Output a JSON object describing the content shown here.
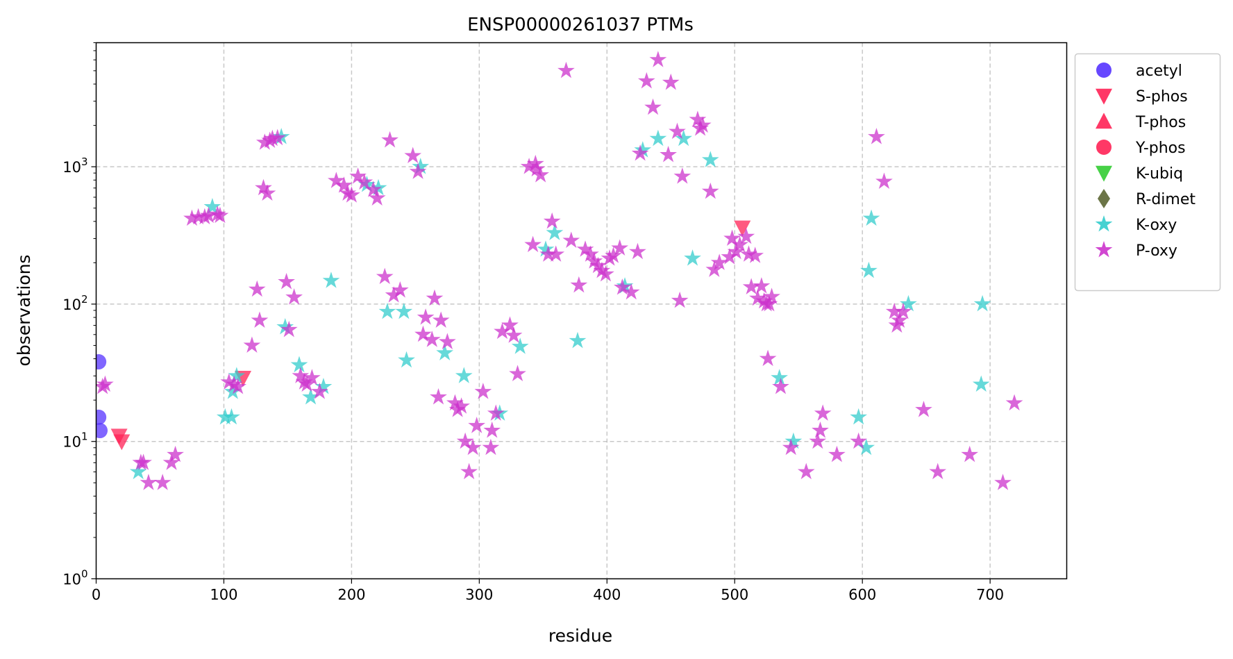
{
  "chart_data": {
    "type": "scatter",
    "title": "ENSP00000261037 PTMs",
    "xlabel": "residue",
    "ylabel": "observations",
    "xlim": [
      0,
      760
    ],
    "ylim": [
      1,
      8000
    ],
    "yscale": "log",
    "grid": true,
    "legend_position": "outside-right",
    "x_ticks": [
      "0",
      "100",
      "200",
      "300",
      "400",
      "500",
      "600",
      "700"
    ],
    "y_ticks": [
      {
        "base": "10",
        "exp": "0"
      },
      {
        "base": "10",
        "exp": "1"
      },
      {
        "base": "10",
        "exp": "2"
      },
      {
        "base": "10",
        "exp": "3"
      }
    ],
    "series": [
      {
        "name": "acetyl",
        "marker": "circle",
        "color": "#5533ff",
        "points": [
          [
            2,
            38
          ],
          [
            2,
            15
          ],
          [
            3,
            12
          ]
        ]
      },
      {
        "name": "S-phos",
        "marker": "triangle-down",
        "color": "#ff2255",
        "points": [
          [
            18,
            11
          ],
          [
            20,
            10
          ],
          [
            115,
            29
          ],
          [
            506,
            360
          ]
        ]
      },
      {
        "name": "T-phos",
        "marker": "triangle-up",
        "color": "#ff2255",
        "points": []
      },
      {
        "name": "Y-phos",
        "marker": "circle",
        "color": "#ff2255",
        "points": []
      },
      {
        "name": "K-ubiq",
        "marker": "triangle-down",
        "color": "#33cc33",
        "points": []
      },
      {
        "name": "R-dimet",
        "marker": "diamond",
        "color": "#5c6633",
        "points": []
      },
      {
        "name": "K-oxy",
        "marker": "star",
        "color": "#33cccc",
        "points": [
          [
            33,
            6
          ],
          [
            91,
            510
          ],
          [
            101,
            15
          ],
          [
            106,
            15
          ],
          [
            107,
            23
          ],
          [
            110,
            30
          ],
          [
            145,
            1650
          ],
          [
            148,
            68
          ],
          [
            159,
            36
          ],
          [
            168,
            21
          ],
          [
            178,
            25
          ],
          [
            184,
            148
          ],
          [
            212,
            740
          ],
          [
            221,
            700
          ],
          [
            228,
            88
          ],
          [
            241,
            88
          ],
          [
            243,
            39
          ],
          [
            254,
            1000
          ],
          [
            273,
            44
          ],
          [
            288,
            30
          ],
          [
            316,
            16
          ],
          [
            332,
            49
          ],
          [
            352,
            250
          ],
          [
            359,
            330
          ],
          [
            377,
            54
          ],
          [
            414,
            135
          ],
          [
            428,
            1320
          ],
          [
            440,
            1600
          ],
          [
            460,
            1600
          ],
          [
            467,
            215
          ],
          [
            481,
            1120
          ],
          [
            535,
            29
          ],
          [
            546,
            10
          ],
          [
            597,
            15
          ],
          [
            603,
            9
          ],
          [
            605,
            175
          ],
          [
            607,
            420
          ],
          [
            636,
            100
          ],
          [
            693,
            26
          ],
          [
            694,
            100
          ]
        ]
      },
      {
        "name": "P-oxy",
        "marker": "star",
        "color": "#cc33cc",
        "points": [
          [
            5,
            25
          ],
          [
            7,
            26
          ],
          [
            35,
            7
          ],
          [
            37,
            7
          ],
          [
            41,
            5
          ],
          [
            52,
            5
          ],
          [
            59,
            7
          ],
          [
            62,
            8
          ],
          [
            75,
            420
          ],
          [
            80,
            430
          ],
          [
            85,
            430
          ],
          [
            88,
            440
          ],
          [
            95,
            450
          ],
          [
            97,
            440
          ],
          [
            104,
            27
          ],
          [
            108,
            26
          ],
          [
            111,
            25
          ],
          [
            122,
            50
          ],
          [
            126,
            128
          ],
          [
            128,
            76
          ],
          [
            131,
            700
          ],
          [
            132,
            1500
          ],
          [
            134,
            640
          ],
          [
            136,
            1550
          ],
          [
            138,
            1600
          ],
          [
            142,
            1620
          ],
          [
            149,
            145
          ],
          [
            151,
            65
          ],
          [
            155,
            112
          ],
          [
            160,
            30
          ],
          [
            163,
            27
          ],
          [
            165,
            26
          ],
          [
            169,
            29
          ],
          [
            175,
            23
          ],
          [
            188,
            790
          ],
          [
            194,
            730
          ],
          [
            197,
            640
          ],
          [
            200,
            620
          ],
          [
            205,
            850
          ],
          [
            210,
            770
          ],
          [
            217,
            680
          ],
          [
            220,
            590
          ],
          [
            226,
            158
          ],
          [
            230,
            1560
          ],
          [
            233,
            116
          ],
          [
            238,
            126
          ],
          [
            248,
            1200
          ],
          [
            252,
            920
          ],
          [
            256,
            60
          ],
          [
            258,
            80
          ],
          [
            263,
            55
          ],
          [
            265,
            110
          ],
          [
            268,
            21
          ],
          [
            270,
            76
          ],
          [
            275,
            53
          ],
          [
            281,
            19
          ],
          [
            283,
            17
          ],
          [
            286,
            18
          ],
          [
            289,
            10
          ],
          [
            292,
            6
          ],
          [
            295,
            9
          ],
          [
            298,
            13
          ],
          [
            303,
            23
          ],
          [
            309,
            9
          ],
          [
            310,
            12
          ],
          [
            313,
            16
          ],
          [
            318,
            63
          ],
          [
            324,
            70
          ],
          [
            327,
            59
          ],
          [
            330,
            31
          ],
          [
            339,
            1000
          ],
          [
            344,
            1050
          ],
          [
            345,
            960
          ],
          [
            348,
            870
          ],
          [
            342,
            270
          ],
          [
            354,
            230
          ],
          [
            357,
            400
          ],
          [
            360,
            230
          ],
          [
            372,
            290
          ],
          [
            378,
            137
          ],
          [
            368,
            5000
          ],
          [
            383,
            250
          ],
          [
            387,
            230
          ],
          [
            390,
            205
          ],
          [
            393,
            190
          ],
          [
            396,
            175
          ],
          [
            399,
            165
          ],
          [
            402,
            215
          ],
          [
            405,
            225
          ],
          [
            410,
            255
          ],
          [
            412,
            132
          ],
          [
            419,
            122
          ],
          [
            424,
            240
          ],
          [
            426,
            1250
          ],
          [
            431,
            4200
          ],
          [
            436,
            2700
          ],
          [
            440,
            6000
          ],
          [
            448,
            1220
          ],
          [
            450,
            4100
          ],
          [
            455,
            1800
          ],
          [
            459,
            850
          ],
          [
            457,
            106
          ],
          [
            471,
            2200
          ],
          [
            473,
            1900
          ],
          [
            475,
            2000
          ],
          [
            481,
            660
          ],
          [
            484,
            178
          ],
          [
            488,
            200
          ],
          [
            496,
            220
          ],
          [
            498,
            300
          ],
          [
            501,
            240
          ],
          [
            504,
            270
          ],
          [
            509,
            310
          ],
          [
            511,
            230
          ],
          [
            513,
            133
          ],
          [
            516,
            225
          ],
          [
            518,
            110
          ],
          [
            521,
            135
          ],
          [
            523,
            105
          ],
          [
            525,
            100
          ],
          [
            527,
            100
          ],
          [
            529,
            113
          ],
          [
            526,
            40
          ],
          [
            536,
            25
          ],
          [
            544,
            9
          ],
          [
            556,
            6
          ],
          [
            565,
            10
          ],
          [
            567,
            12
          ],
          [
            569,
            16
          ],
          [
            580,
            8
          ],
          [
            597,
            10
          ],
          [
            611,
            1650
          ],
          [
            617,
            780
          ],
          [
            625,
            88
          ],
          [
            627,
            70
          ],
          [
            629,
            76
          ],
          [
            632,
            88
          ],
          [
            648,
            17
          ],
          [
            659,
            6
          ],
          [
            684,
            8
          ],
          [
            710,
            5
          ],
          [
            719,
            19
          ]
        ]
      }
    ]
  }
}
